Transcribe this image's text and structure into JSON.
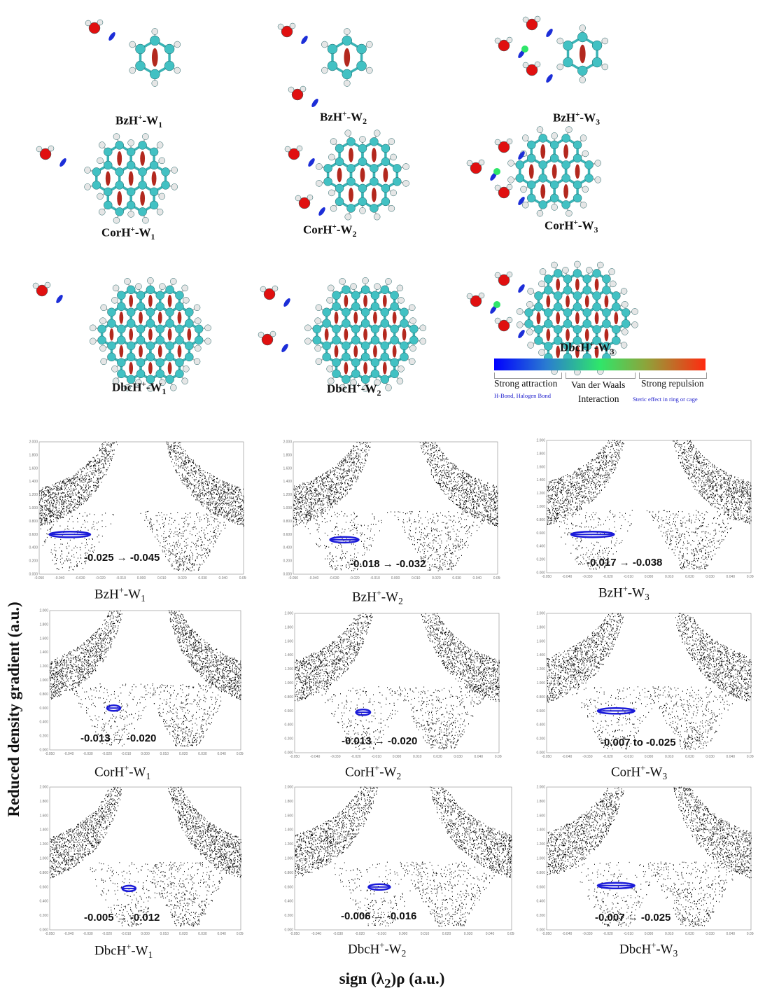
{
  "molecules": [
    {
      "id": "bz-w1",
      "label": {
        "base": "BzH",
        "sup": "+",
        "mid": "-W",
        "sub": "1"
      },
      "size": "bz",
      "waters": 1
    },
    {
      "id": "bz-w2",
      "label": {
        "base": "BzH",
        "sup": "+",
        "mid": "-W",
        "sub": "2"
      },
      "size": "bz",
      "waters": 2
    },
    {
      "id": "bz-w3",
      "label": {
        "base": "BzH",
        "sup": "+",
        "mid": "-W",
        "sub": "3"
      },
      "size": "bz",
      "waters": 3
    },
    {
      "id": "cor-w1",
      "label": {
        "base": "CorH",
        "sup": "+",
        "mid": "-W",
        "sub": "1"
      },
      "size": "cor",
      "waters": 1
    },
    {
      "id": "cor-w2",
      "label": {
        "base": "CorH",
        "sup": "+",
        "mid": "-W",
        "sub": "2"
      },
      "size": "cor",
      "waters": 2
    },
    {
      "id": "cor-w3",
      "label": {
        "base": "CorH",
        "sup": "+",
        "mid": "-W",
        "sub": "3"
      },
      "size": "cor",
      "waters": 3
    },
    {
      "id": "dbc-w1",
      "label": {
        "base": "DbcH",
        "sup": "+",
        "mid": "-W",
        "sub": "1"
      },
      "size": "dbc",
      "waters": 1
    },
    {
      "id": "dbc-w2",
      "label": {
        "base": "DbcH",
        "sup": "+",
        "mid": "-W",
        "sub": "2"
      },
      "size": "dbc",
      "waters": 2
    },
    {
      "id": "dbc-w3",
      "label": {
        "base": "DbcH",
        "sup": "+",
        "mid": "-W",
        "sub": "3"
      },
      "size": "dbc",
      "waters": 3
    }
  ],
  "legend": {
    "strong_attraction": "Strong attraction",
    "van_der_waals": "Van der Waals",
    "interaction": "Interaction",
    "strong_repulsion": "Strong repulsion",
    "hbond_note": "H-Bond, Halogen Bond",
    "steric_note": "Steric effect in ring or cage",
    "colors": [
      "#0000ff",
      "#2a7dd0",
      "#2fe66a",
      "#8ea33a",
      "#ff2a10"
    ]
  },
  "axes": {
    "y_title": "Reduced density gradient (a.u.)",
    "x_title_prefix": "sign (λ",
    "x_title_sub": "2",
    "x_title_suffix": ")ρ  (a.u.)"
  },
  "chart_data": [
    {
      "type": "scatter",
      "id": "bz-w1",
      "label": {
        "base": "BzH",
        "sup": "+",
        "mid": "-W",
        "sub": "1"
      },
      "range_text": "-0.025 → -0.045",
      "highlight": {
        "x_from": -0.045,
        "x_to": -0.025,
        "y": 0.6
      },
      "xlim": [
        -0.05,
        0.05
      ],
      "ylim": [
        0,
        2.0
      ],
      "x_ticks": [
        "-0.050",
        "-0.040",
        "-0.030",
        "-0.020",
        "-0.010",
        "0.000",
        "0.010",
        "0.020",
        "0.030",
        "0.040",
        "0.050"
      ],
      "y_ticks": [
        "0.000",
        "0.200",
        "0.400",
        "0.600",
        "0.800",
        "1.000",
        "1.200",
        "1.400",
        "1.600",
        "1.800",
        "2.000"
      ]
    },
    {
      "type": "scatter",
      "id": "bz-w2",
      "label": {
        "base": "BzH",
        "sup": "+",
        "mid": "-W",
        "sub": "2"
      },
      "range_text": "-0.018 → -0.032",
      "highlight": {
        "x_from": -0.032,
        "x_to": -0.018,
        "y": 0.52
      },
      "xlim": [
        -0.05,
        0.05
      ],
      "ylim": [
        0,
        2.0
      ],
      "x_ticks": [
        "-0.050",
        "-0.040",
        "-0.030",
        "-0.020",
        "-0.010",
        "0.000",
        "0.010",
        "0.020",
        "0.030",
        "0.040",
        "0.050"
      ],
      "y_ticks": [
        "0.000",
        "0.200",
        "0.400",
        "0.600",
        "0.800",
        "1.000",
        "1.200",
        "1.400",
        "1.600",
        "1.800",
        "2.000"
      ]
    },
    {
      "type": "scatter",
      "id": "bz-w3",
      "label": {
        "base": "BzH",
        "sup": "+",
        "mid": "-W",
        "sub": "3"
      },
      "range_text": "-0.017 → -0.038",
      "highlight": {
        "x_from": -0.038,
        "x_to": -0.017,
        "y": 0.58
      },
      "xlim": [
        -0.05,
        0.05
      ],
      "ylim": [
        0,
        2.0
      ],
      "x_ticks": [
        "-0.050",
        "-0.040",
        "-0.030",
        "-0.020",
        "-0.010",
        "0.000",
        "0.010",
        "0.020",
        "0.030",
        "0.040",
        "0.050"
      ],
      "y_ticks": [
        "0.000",
        "0.200",
        "0.400",
        "0.600",
        "0.800",
        "1.000",
        "1.200",
        "1.400",
        "1.600",
        "1.800",
        "2.000"
      ]
    },
    {
      "type": "scatter",
      "id": "cor-w1",
      "label": {
        "base": "CorH",
        "sup": "+",
        "mid": "-W",
        "sub": "1"
      },
      "range_text": "-0.013 → -0.020",
      "highlight": {
        "x_from": -0.02,
        "x_to": -0.013,
        "y": 0.6
      },
      "xlim": [
        -0.05,
        0.05
      ],
      "ylim": [
        0,
        2.0
      ],
      "x_ticks": [
        "-0.050",
        "-0.040",
        "-0.030",
        "-0.020",
        "-0.010",
        "0.000",
        "0.010",
        "0.020",
        "0.030",
        "0.040",
        "0.050"
      ],
      "y_ticks": [
        "0.000",
        "0.200",
        "0.400",
        "0.600",
        "0.800",
        "1.000",
        "1.200",
        "1.400",
        "1.600",
        "1.800",
        "2.000"
      ]
    },
    {
      "type": "scatter",
      "id": "cor-w2",
      "label": {
        "base": "CorH",
        "sup": "+",
        "mid": "-W",
        "sub": "2"
      },
      "range_text": "-0.013 → -0.020",
      "highlight": {
        "x_from": -0.02,
        "x_to": -0.013,
        "y": 0.58
      },
      "xlim": [
        -0.05,
        0.05
      ],
      "ylim": [
        0,
        2.0
      ],
      "x_ticks": [
        "-0.050",
        "-0.040",
        "-0.030",
        "-0.020",
        "-0.010",
        "0.000",
        "0.010",
        "0.020",
        "0.030",
        "0.040",
        "0.050"
      ],
      "y_ticks": [
        "0.000",
        "0.200",
        "0.400",
        "0.600",
        "0.800",
        "1.000",
        "1.200",
        "1.400",
        "1.600",
        "1.800",
        "2.000"
      ]
    },
    {
      "type": "scatter",
      "id": "cor-w3",
      "label": {
        "base": "CorH",
        "sup": "+",
        "mid": "-W",
        "sub": "3"
      },
      "range_text": "-0.007 to -0.025",
      "highlight": {
        "x_from": -0.025,
        "x_to": -0.007,
        "y": 0.6
      },
      "xlim": [
        -0.05,
        0.05
      ],
      "ylim": [
        0,
        2.0
      ],
      "x_ticks": [
        "-0.050",
        "-0.040",
        "-0.030",
        "-0.020",
        "-0.010",
        "0.000",
        "0.010",
        "0.020",
        "0.030",
        "0.040",
        "0.050"
      ],
      "y_ticks": [
        "0.000",
        "0.200",
        "0.400",
        "0.600",
        "0.800",
        "1.000",
        "1.200",
        "1.400",
        "1.600",
        "1.800",
        "2.000"
      ]
    },
    {
      "type": "scatter",
      "id": "dbc-w1",
      "label": {
        "base": "DbcH",
        "sup": "+",
        "mid": "-W",
        "sub": "1"
      },
      "range_text": "-0.005 → -0.012",
      "highlight": {
        "x_from": -0.012,
        "x_to": -0.005,
        "y": 0.58
      },
      "xlim": [
        -0.05,
        0.05
      ],
      "ylim": [
        0,
        2.0
      ],
      "x_ticks": [
        "-0.050",
        "-0.040",
        "-0.030",
        "-0.020",
        "-0.010",
        "0.000",
        "0.010",
        "0.020",
        "0.030",
        "0.040",
        "0.050"
      ],
      "y_ticks": [
        "0.000",
        "0.200",
        "0.400",
        "0.600",
        "0.800",
        "1.000",
        "1.200",
        "1.400",
        "1.600",
        "1.800",
        "2.000"
      ]
    },
    {
      "type": "scatter",
      "id": "dbc-w2",
      "label": {
        "base": "DbcH",
        "sup": "+",
        "mid": "-W",
        "sub": "2"
      },
      "range_text": "-0.006 → -0.016",
      "highlight": {
        "x_from": -0.016,
        "x_to": -0.006,
        "y": 0.6
      },
      "xlim": [
        -0.05,
        0.05
      ],
      "ylim": [
        0,
        2.0
      ],
      "x_ticks": [
        "-0.050",
        "-0.040",
        "-0.030",
        "-0.020",
        "-0.010",
        "0.000",
        "0.010",
        "0.020",
        "0.030",
        "0.040",
        "0.050"
      ],
      "y_ticks": [
        "0.000",
        "0.200",
        "0.400",
        "0.600",
        "0.800",
        "1.000",
        "1.200",
        "1.400",
        "1.600",
        "1.800",
        "2.000"
      ]
    },
    {
      "type": "scatter",
      "id": "dbc-w3",
      "label": {
        "base": "DbcH",
        "sup": "+",
        "mid": "-W",
        "sub": "3"
      },
      "range_text": "-0.007 → -0.025",
      "highlight": {
        "x_from": -0.025,
        "x_to": -0.007,
        "y": 0.62
      },
      "xlim": [
        -0.05,
        0.05
      ],
      "ylim": [
        0,
        2.0
      ],
      "x_ticks": [
        "-0.050",
        "-0.040",
        "-0.030",
        "-0.020",
        "-0.010",
        "0.000",
        "0.010",
        "0.020",
        "0.030",
        "0.040",
        "0.050"
      ],
      "y_ticks": [
        "0.000",
        "0.200",
        "0.400",
        "0.600",
        "0.800",
        "1.000",
        "1.200",
        "1.400",
        "1.600",
        "1.800",
        "2.000"
      ]
    }
  ]
}
